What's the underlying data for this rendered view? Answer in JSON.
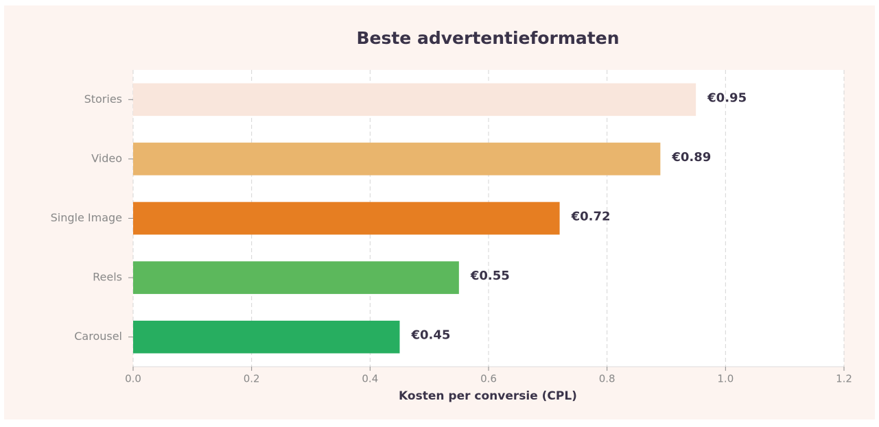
{
  "chart_data": {
    "type": "bar",
    "orientation": "horizontal",
    "title": "Beste advertentieformaten",
    "xlabel": "Kosten per conversie (CPL)",
    "categories": [
      "Stories",
      "Video",
      "Single Image",
      "Reels",
      "Carousel"
    ],
    "values": [
      0.95,
      0.89,
      0.72,
      0.55,
      0.45
    ],
    "value_labels": [
      "€0.95",
      "€0.89",
      "€0.72",
      "€0.55",
      "€0.45"
    ],
    "colors": [
      "#f9e6dc",
      "#e9b56d",
      "#e67e22",
      "#5cb85c",
      "#27ae60"
    ],
    "xlim": [
      0,
      1.2
    ],
    "xticks": [
      {
        "value": 0,
        "label": "0.0"
      },
      0.2,
      0.4,
      0.6,
      0.8,
      {
        "value": 1,
        "label": "1.0"
      },
      1.2
    ],
    "grid": true
  }
}
